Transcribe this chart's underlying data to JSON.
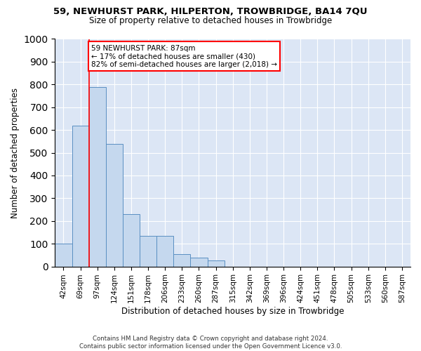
{
  "title": "59, NEWHURST PARK, HILPERTON, TROWBRIDGE, BA14 7QU",
  "subtitle": "Size of property relative to detached houses in Trowbridge",
  "xlabel": "Distribution of detached houses by size in Trowbridge",
  "ylabel": "Number of detached properties",
  "bar_color": "#c5d8ee",
  "bar_edge_color": "#5a8fc2",
  "background_color": "#dce6f5",
  "categories": [
    "42sqm",
    "69sqm",
    "97sqm",
    "124sqm",
    "151sqm",
    "178sqm",
    "206sqm",
    "233sqm",
    "260sqm",
    "287sqm",
    "315sqm",
    "342sqm",
    "369sqm",
    "396sqm",
    "424sqm",
    "451sqm",
    "478sqm",
    "505sqm",
    "533sqm",
    "560sqm",
    "587sqm"
  ],
  "values": [
    100,
    620,
    790,
    540,
    230,
    135,
    135,
    55,
    40,
    25,
    0,
    0,
    0,
    0,
    0,
    0,
    0,
    0,
    0,
    0,
    0
  ],
  "ylim": [
    0,
    1000
  ],
  "yticks": [
    0,
    100,
    200,
    300,
    400,
    500,
    600,
    700,
    800,
    900,
    1000
  ],
  "vline_x": 1.5,
  "annotation_title": "59 NEWHURST PARK: 87sqm",
  "annotation_line1": "← 17% of detached houses are smaller (430)",
  "annotation_line2": "82% of semi-detached houses are larger (2,018) →",
  "annotation_box_color": "white",
  "annotation_border_color": "red",
  "vline_color": "red",
  "footer_line1": "Contains HM Land Registry data © Crown copyright and database right 2024.",
  "footer_line2": "Contains public sector information licensed under the Open Government Licence v3.0."
}
